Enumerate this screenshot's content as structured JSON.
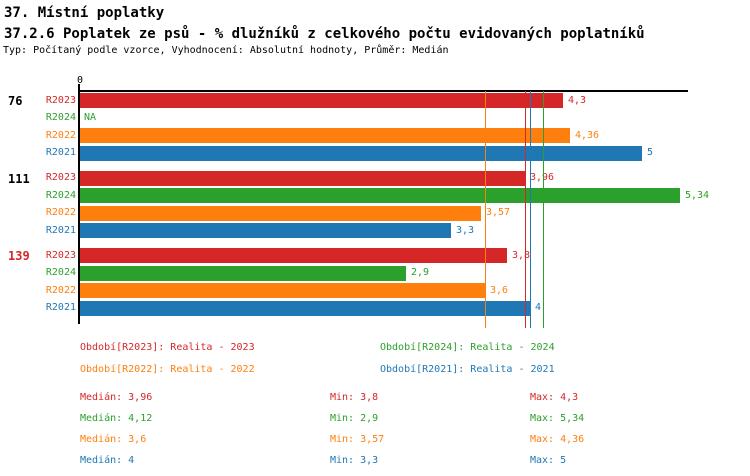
{
  "header": {
    "title1": "37. Místní poplatky",
    "title2": "37.2.6 Poplatek ze psů - % dlužníků z celkového počtu evidovaných poplatníků",
    "subtitle": "Typ: Počítaný podle vzorce, Vyhodnocení: Absolutní hodnoty, Průměr: Medián"
  },
  "colors": {
    "R2023": "#d62728",
    "R2024": "#2ca02c",
    "R2022": "#ff7f0e",
    "R2021": "#1f77b4",
    "axis": "#000000",
    "group_label_default": "#000000",
    "group_label_highlight": "#d62728"
  },
  "chart_data": {
    "type": "bar",
    "orientation": "horizontal",
    "x_origin_label": "0",
    "xlim": [
      0,
      5.9
    ],
    "grid": false,
    "series_order": [
      "R2023",
      "R2024",
      "R2022",
      "R2021"
    ],
    "groups": [
      {
        "label": "76",
        "label_color_key": "group_label_default",
        "bars": [
          {
            "series": "R2023",
            "value": 4.3,
            "display": "4,3"
          },
          {
            "series": "R2024",
            "value": null,
            "display": "NA"
          },
          {
            "series": "R2022",
            "value": 4.36,
            "display": "4,36"
          },
          {
            "series": "R2021",
            "value": 5,
            "display": "5"
          }
        ]
      },
      {
        "label": "111",
        "label_color_key": "group_label_default",
        "bars": [
          {
            "series": "R2023",
            "value": 3.96,
            "display": "3,96"
          },
          {
            "series": "R2024",
            "value": 5.34,
            "display": "5,34"
          },
          {
            "series": "R2022",
            "value": 3.57,
            "display": "3,57"
          },
          {
            "series": "R2021",
            "value": 3.3,
            "display": "3,3"
          }
        ]
      },
      {
        "label": "139",
        "label_color_key": "group_label_highlight",
        "bars": [
          {
            "series": "R2023",
            "value": 3.8,
            "display": "3,8"
          },
          {
            "series": "R2024",
            "value": 2.9,
            "display": "2,9"
          },
          {
            "series": "R2022",
            "value": 3.6,
            "display": "3,6"
          },
          {
            "series": "R2021",
            "value": 4,
            "display": "4"
          }
        ]
      }
    ],
    "median_lines": [
      {
        "series": "R2022",
        "value": 3.6
      },
      {
        "series": "R2023",
        "value": 3.96
      },
      {
        "series": "R2021",
        "value": 4
      },
      {
        "series": "R2024",
        "value": 4.12
      }
    ]
  },
  "legend": {
    "items": [
      {
        "series": "R2023",
        "text": "Období[R2023]: Realita - 2023"
      },
      {
        "series": "R2024",
        "text": "Období[R2024]: Realita - 2024"
      },
      {
        "series": "R2022",
        "text": "Období[R2022]: Realita - 2022"
      },
      {
        "series": "R2021",
        "text": "Období[R2021]: Realita - 2021"
      }
    ]
  },
  "stats": {
    "rows": [
      {
        "series": "R2023",
        "median": "Medián: 3,96",
        "min": "Min: 3,8",
        "max": "Max: 4,3"
      },
      {
        "series": "R2024",
        "median": "Medián: 4,12",
        "min": "Min: 2,9",
        "max": "Max: 5,34"
      },
      {
        "series": "R2022",
        "median": "Medián: 3,6",
        "min": "Min: 3,57",
        "max": "Max: 4,36"
      },
      {
        "series": "R2021",
        "median": "Medián: 4",
        "min": "Min: 3,3",
        "max": "Max: 5"
      }
    ]
  }
}
